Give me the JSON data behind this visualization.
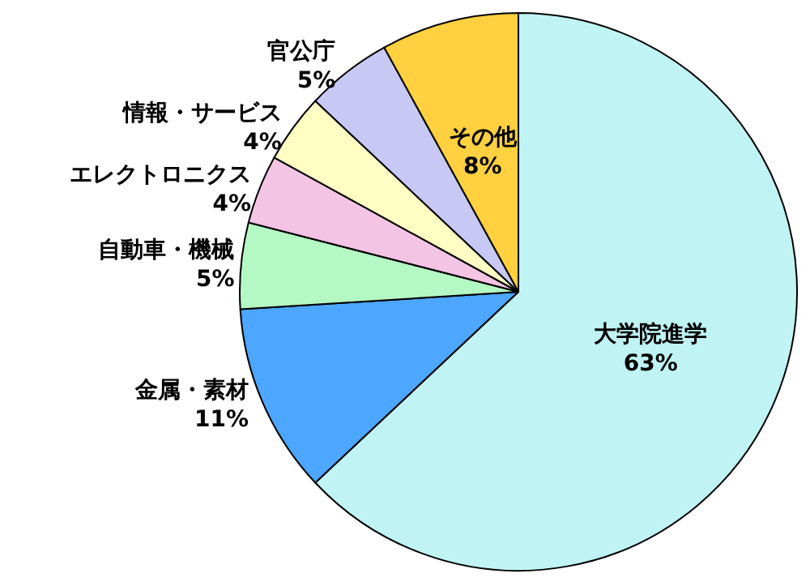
{
  "chart_data": {
    "type": "pie",
    "categories": [
      "大学院進学",
      "金属・素材",
      "自動車・機械",
      "エレクトロニクス",
      "情報・サービス",
      "官公庁",
      "その他"
    ],
    "values": [
      63,
      11,
      5,
      4,
      4,
      5,
      8
    ],
    "colors": [
      "#c0f4f4",
      "#4da6ff",
      "#b4f8c4",
      "#f4c4e4",
      "#ffffc4",
      "#c8c8f4",
      "#ffd040"
    ],
    "value_labels": [
      "63%",
      "11%",
      "5%",
      "4%",
      "4%",
      "5%",
      "8%"
    ],
    "legend": false
  }
}
